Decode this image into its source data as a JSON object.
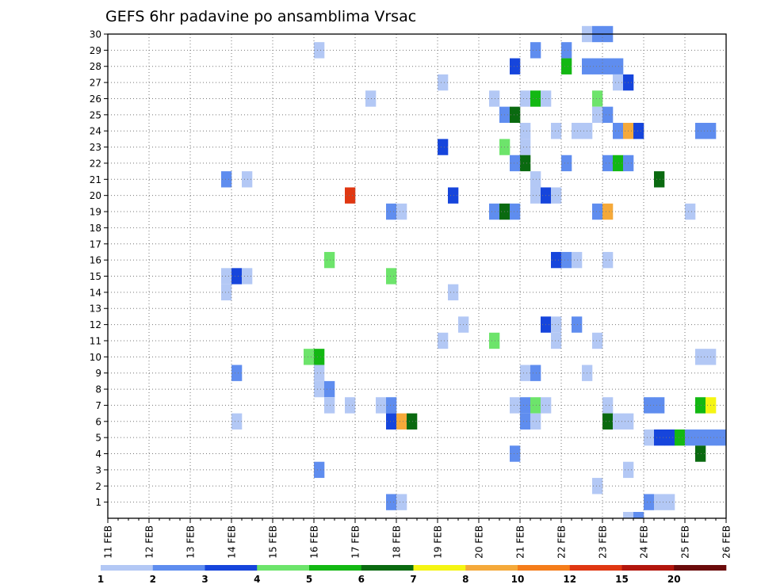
{
  "chart_data": {
    "type": "heatmap",
    "title": "GEFS 6hr padavine po ansamblima Vrsac",
    "y_ticks": [
      "1",
      "2",
      "3",
      "4",
      "5",
      "6",
      "7",
      "8",
      "9",
      "10",
      "11",
      "12",
      "13",
      "14",
      "15",
      "16",
      "17",
      "18",
      "19",
      "20",
      "21",
      "22",
      "23",
      "24",
      "25",
      "26",
      "27",
      "28",
      "29",
      "30"
    ],
    "x_ticks": [
      "11 FEB",
      "12 FEB",
      "13 FEB",
      "14 FEB",
      "15 FEB",
      "16 FEB",
      "17 FEB",
      "18 FEB",
      "19 FEB",
      "20 FEB",
      "21 FEB",
      "22 FEB",
      "23 FEB",
      "24 FEB",
      "25 FEB",
      "26 FEB"
    ],
    "x_range": [
      "11 FEB 00z",
      "26 FEB 00z"
    ],
    "time_step_hours": 6,
    "y_range": [
      0,
      30
    ],
    "grid": true,
    "colorbar": {
      "labels": [
        "1",
        "2",
        "3",
        "4",
        "5",
        "6",
        "7",
        "8",
        "10",
        "12",
        "15",
        "20"
      ],
      "colors": [
        "#b3c8f5",
        "#5f8def",
        "#1645dc",
        "#6de46b",
        "#13b813",
        "#0a6a10",
        "#f5f513",
        "#f5a93a",
        "#f57d1a",
        "#e03712",
        "#b3160d",
        "#6b0b0b"
      ]
    },
    "cells_note": "Each cell: x = 6-hour slot index from 11 FEB 00z (0..59), y = ensemble member, c = color class index (0 = 1-2 mm ... 11 = >20 mm)",
    "cells": [
      {
        "x": 50,
        "y": 0,
        "c": 0
      },
      {
        "x": 51,
        "y": 0,
        "c": 1
      },
      {
        "x": 46,
        "y": 30,
        "c": 0
      },
      {
        "x": 47,
        "y": 30,
        "c": 1
      },
      {
        "x": 48,
        "y": 30,
        "c": 1
      },
      {
        "x": 41,
        "y": 29,
        "c": 1
      },
      {
        "x": 44,
        "y": 29,
        "c": 1
      },
      {
        "x": 20,
        "y": 29,
        "c": 0
      },
      {
        "x": 39,
        "y": 28,
        "c": 2
      },
      {
        "x": 44,
        "y": 28,
        "c": 4
      },
      {
        "x": 46,
        "y": 28,
        "c": 1
      },
      {
        "x": 47,
        "y": 28,
        "c": 1
      },
      {
        "x": 48,
        "y": 28,
        "c": 1
      },
      {
        "x": 49,
        "y": 28,
        "c": 1
      },
      {
        "x": 32,
        "y": 27,
        "c": 0
      },
      {
        "x": 49,
        "y": 27,
        "c": 0
      },
      {
        "x": 50,
        "y": 27,
        "c": 2
      },
      {
        "x": 25,
        "y": 26,
        "c": 0
      },
      {
        "x": 37,
        "y": 26,
        "c": 0
      },
      {
        "x": 40,
        "y": 26,
        "c": 0
      },
      {
        "x": 41,
        "y": 26,
        "c": 4
      },
      {
        "x": 42,
        "y": 26,
        "c": 0
      },
      {
        "x": 47,
        "y": 26,
        "c": 3
      },
      {
        "x": 38,
        "y": 25,
        "c": 1
      },
      {
        "x": 39,
        "y": 25,
        "c": 5
      },
      {
        "x": 47,
        "y": 25,
        "c": 0
      },
      {
        "x": 48,
        "y": 25,
        "c": 1
      },
      {
        "x": 40,
        "y": 24,
        "c": 0
      },
      {
        "x": 43,
        "y": 24,
        "c": 0
      },
      {
        "x": 45,
        "y": 24,
        "c": 0
      },
      {
        "x": 46,
        "y": 24,
        "c": 0
      },
      {
        "x": 49,
        "y": 24,
        "c": 1
      },
      {
        "x": 50,
        "y": 24,
        "c": 7
      },
      {
        "x": 51,
        "y": 24,
        "c": 2
      },
      {
        "x": 57,
        "y": 24,
        "c": 1
      },
      {
        "x": 58,
        "y": 24,
        "c": 1
      },
      {
        "x": 32,
        "y": 23,
        "c": 2
      },
      {
        "x": 38,
        "y": 23,
        "c": 3
      },
      {
        "x": 40,
        "y": 23,
        "c": 0
      },
      {
        "x": 39,
        "y": 22,
        "c": 1
      },
      {
        "x": 40,
        "y": 22,
        "c": 5
      },
      {
        "x": 44,
        "y": 22,
        "c": 1
      },
      {
        "x": 48,
        "y": 22,
        "c": 1
      },
      {
        "x": 49,
        "y": 22,
        "c": 4
      },
      {
        "x": 50,
        "y": 22,
        "c": 1
      },
      {
        "x": 11,
        "y": 21,
        "c": 1
      },
      {
        "x": 13,
        "y": 21,
        "c": 0
      },
      {
        "x": 41,
        "y": 21,
        "c": 0
      },
      {
        "x": 53,
        "y": 21,
        "c": 5
      },
      {
        "x": 23,
        "y": 20,
        "c": 9
      },
      {
        "x": 33,
        "y": 20,
        "c": 2
      },
      {
        "x": 41,
        "y": 20,
        "c": 0
      },
      {
        "x": 42,
        "y": 20,
        "c": 2
      },
      {
        "x": 43,
        "y": 20,
        "c": 0
      },
      {
        "x": 27,
        "y": 19,
        "c": 1
      },
      {
        "x": 28,
        "y": 19,
        "c": 0
      },
      {
        "x": 37,
        "y": 19,
        "c": 1
      },
      {
        "x": 38,
        "y": 19,
        "c": 5
      },
      {
        "x": 39,
        "y": 19,
        "c": 1
      },
      {
        "x": 47,
        "y": 19,
        "c": 1
      },
      {
        "x": 48,
        "y": 19,
        "c": 7
      },
      {
        "x": 56,
        "y": 19,
        "c": 0
      },
      {
        "x": 43,
        "y": 16,
        "c": 2
      },
      {
        "x": 44,
        "y": 16,
        "c": 1
      },
      {
        "x": 45,
        "y": 16,
        "c": 0
      },
      {
        "x": 48,
        "y": 16,
        "c": 0
      },
      {
        "x": 21,
        "y": 16,
        "c": 3
      },
      {
        "x": 11,
        "y": 15,
        "c": 0
      },
      {
        "x": 12,
        "y": 15,
        "c": 2
      },
      {
        "x": 13,
        "y": 15,
        "c": 0
      },
      {
        "x": 27,
        "y": 15,
        "c": 3
      },
      {
        "x": 11,
        "y": 14,
        "c": 0
      },
      {
        "x": 33,
        "y": 14,
        "c": 0
      },
      {
        "x": 34,
        "y": 12,
        "c": 0
      },
      {
        "x": 42,
        "y": 12,
        "c": 2
      },
      {
        "x": 43,
        "y": 12,
        "c": 0
      },
      {
        "x": 45,
        "y": 12,
        "c": 1
      },
      {
        "x": 32,
        "y": 11,
        "c": 0
      },
      {
        "x": 37,
        "y": 11,
        "c": 3
      },
      {
        "x": 43,
        "y": 11,
        "c": 0
      },
      {
        "x": 47,
        "y": 11,
        "c": 0
      },
      {
        "x": 19,
        "y": 10,
        "c": 3
      },
      {
        "x": 20,
        "y": 10,
        "c": 4
      },
      {
        "x": 57,
        "y": 10,
        "c": 0
      },
      {
        "x": 58,
        "y": 10,
        "c": 0
      },
      {
        "x": 12,
        "y": 9,
        "c": 1
      },
      {
        "x": 20,
        "y": 9,
        "c": 0
      },
      {
        "x": 40,
        "y": 9,
        "c": 0
      },
      {
        "x": 41,
        "y": 9,
        "c": 1
      },
      {
        "x": 46,
        "y": 9,
        "c": 0
      },
      {
        "x": 20,
        "y": 8,
        "c": 0
      },
      {
        "x": 21,
        "y": 8,
        "c": 1
      },
      {
        "x": 21,
        "y": 7,
        "c": 0
      },
      {
        "x": 23,
        "y": 7,
        "c": 0
      },
      {
        "x": 26,
        "y": 7,
        "c": 0
      },
      {
        "x": 27,
        "y": 7,
        "c": 1
      },
      {
        "x": 39,
        "y": 7,
        "c": 0
      },
      {
        "x": 40,
        "y": 7,
        "c": 1
      },
      {
        "x": 41,
        "y": 7,
        "c": 3
      },
      {
        "x": 42,
        "y": 7,
        "c": 0
      },
      {
        "x": 48,
        "y": 7,
        "c": 0
      },
      {
        "x": 52,
        "y": 7,
        "c": 1
      },
      {
        "x": 53,
        "y": 7,
        "c": 1
      },
      {
        "x": 57,
        "y": 7,
        "c": 4
      },
      {
        "x": 58,
        "y": 7,
        "c": 6
      },
      {
        "x": 12,
        "y": 6,
        "c": 0
      },
      {
        "x": 27,
        "y": 6,
        "c": 2
      },
      {
        "x": 28,
        "y": 6,
        "c": 7
      },
      {
        "x": 29,
        "y": 6,
        "c": 5
      },
      {
        "x": 40,
        "y": 6,
        "c": 1
      },
      {
        "x": 41,
        "y": 6,
        "c": 0
      },
      {
        "x": 48,
        "y": 6,
        "c": 5
      },
      {
        "x": 49,
        "y": 6,
        "c": 0
      },
      {
        "x": 50,
        "y": 6,
        "c": 0
      },
      {
        "x": 52,
        "y": 5,
        "c": 0
      },
      {
        "x": 53,
        "y": 5,
        "c": 2
      },
      {
        "x": 54,
        "y": 5,
        "c": 2
      },
      {
        "x": 55,
        "y": 5,
        "c": 4
      },
      {
        "x": 56,
        "y": 5,
        "c": 1
      },
      {
        "x": 57,
        "y": 5,
        "c": 1
      },
      {
        "x": 58,
        "y": 5,
        "c": 1
      },
      {
        "x": 59,
        "y": 5,
        "c": 1
      },
      {
        "x": 39,
        "y": 4,
        "c": 1
      },
      {
        "x": 57,
        "y": 4,
        "c": 5
      },
      {
        "x": 20,
        "y": 3,
        "c": 1
      },
      {
        "x": 50,
        "y": 3,
        "c": 0
      },
      {
        "x": 47,
        "y": 2,
        "c": 0
      },
      {
        "x": 27,
        "y": 1,
        "c": 1
      },
      {
        "x": 28,
        "y": 1,
        "c": 0
      },
      {
        "x": 52,
        "y": 1,
        "c": 1
      },
      {
        "x": 53,
        "y": 1,
        "c": 0
      },
      {
        "x": 54,
        "y": 1,
        "c": 0
      }
    ]
  }
}
